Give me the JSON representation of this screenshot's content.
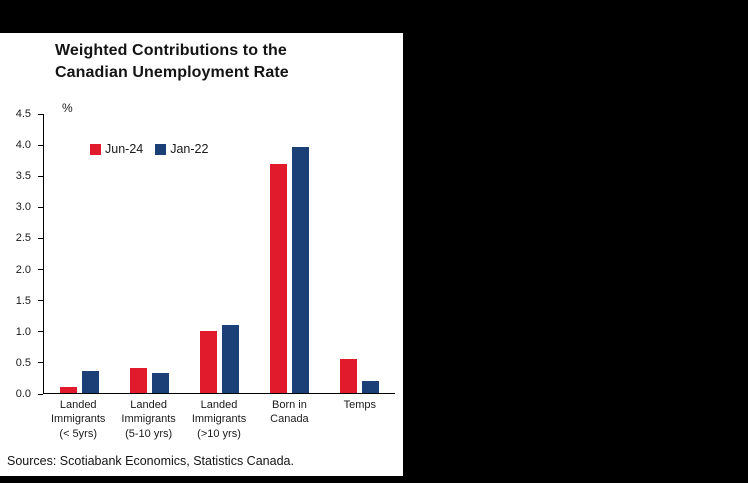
{
  "layout": {
    "frame_color": "#000000",
    "panel_color": "#ffffff"
  },
  "chart_data": {
    "type": "bar",
    "title": "Weighted Contributions to the\nCanadian Unemployment Rate",
    "xlabel": "",
    "ylabel": "%",
    "ylim": [
      0,
      4.5
    ],
    "ytick_step": 0.5,
    "grid": false,
    "legend_position": "inside-top-left",
    "categories": [
      "Landed\nImmigrants\n(< 5yrs)",
      "Landed\nImmigrants\n(5-10 yrs)",
      "Landed\nImmigrants\n(>10 yrs)",
      "Born in\nCanada",
      "Temps"
    ],
    "series": [
      {
        "name": "Jun-24",
        "color": "#e11a2c",
        "values": [
          0.1,
          0.4,
          1.0,
          3.7,
          0.55
        ]
      },
      {
        "name": "Jan-22",
        "color": "#1b4077",
        "values": [
          0.35,
          0.33,
          1.1,
          3.97,
          0.2
        ]
      }
    ]
  },
  "sources": "Sources: Scotiabank Economics, Statistics Canada."
}
